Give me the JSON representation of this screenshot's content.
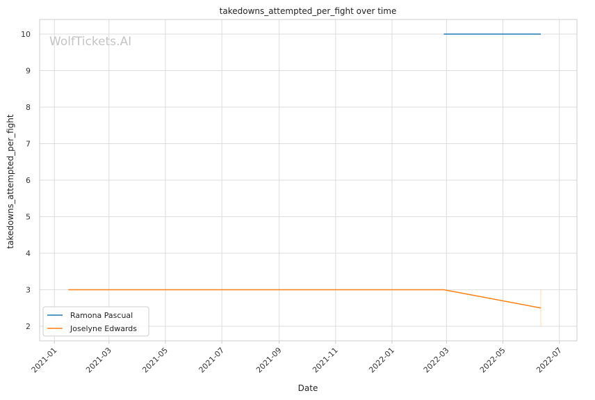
{
  "chart_data": {
    "type": "line",
    "title": "takedowns_attempted_per_fight over time",
    "xlabel": "Date",
    "ylabel": "takedowns_attempted_per_fight",
    "watermark": "WolfTickets.AI",
    "x_ticks": [
      "2021-01",
      "2021-03",
      "2021-05",
      "2021-07",
      "2021-09",
      "2021-11",
      "2022-01",
      "2022-03",
      "2022-05",
      "2022-07"
    ],
    "y_ticks": [
      2,
      3,
      4,
      5,
      6,
      7,
      8,
      9,
      10
    ],
    "xlim": [
      "2020-12-16",
      "2022-07-20"
    ],
    "ylim": [
      1.6,
      10.4
    ],
    "grid": true,
    "legend_position": "lower-left",
    "series": [
      {
        "name": "Ramona Pascual",
        "color": "#1f77b4",
        "x": [
          "2022-02-26",
          "2022-06-11"
        ],
        "y": [
          10,
          10
        ]
      },
      {
        "name": "Joselyne Edwards",
        "color": "#ff7f0e",
        "x": [
          "2021-01-16",
          "2022-02-26",
          "2022-06-11"
        ],
        "y": [
          3,
          3,
          2.5
        ]
      }
    ],
    "band": {
      "series": "Joselyne Edwards",
      "x": "2022-06-11",
      "low": 2.0,
      "high": 3.0,
      "color": "#ff7f0e"
    }
  }
}
